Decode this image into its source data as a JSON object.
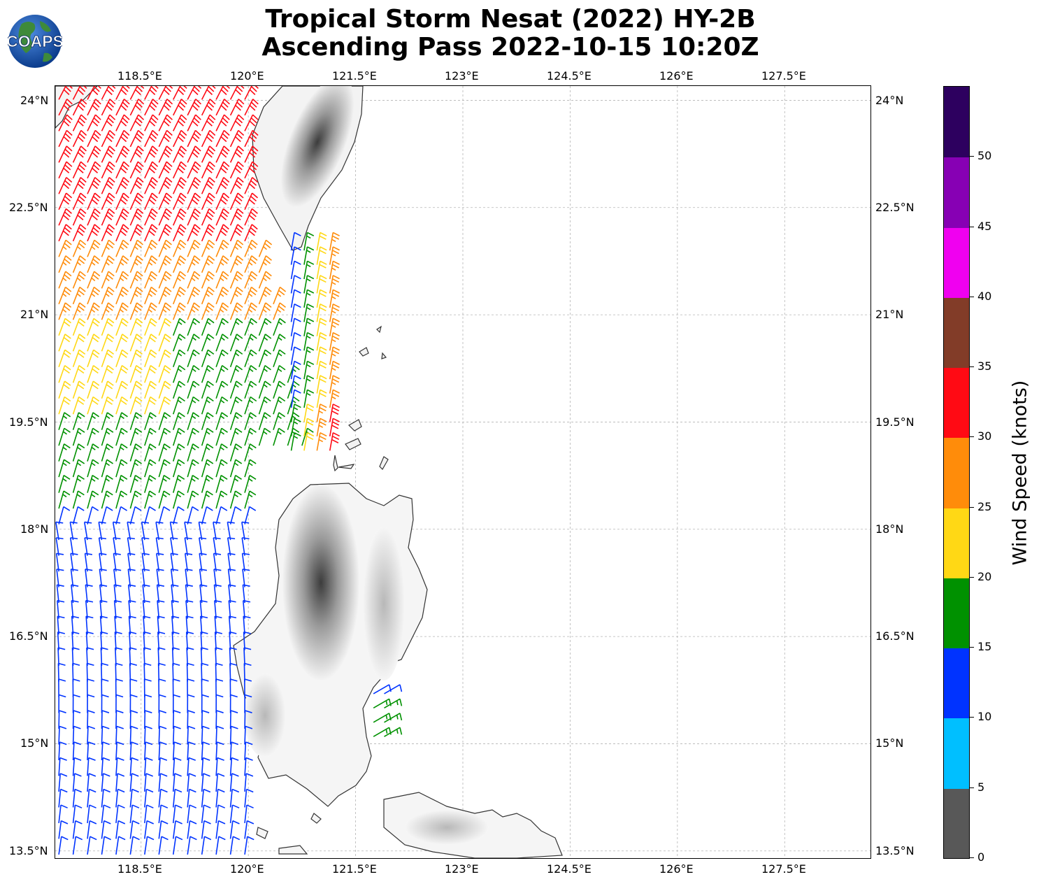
{
  "title": {
    "line1": "Tropical Storm Nesat (2022) HY-2B",
    "line2": "Ascending Pass 2022-10-15 10:20Z"
  },
  "logo": {
    "text": "COAPS",
    "icon": "globe-logo"
  },
  "map": {
    "lon_labels": [
      "118.5°E",
      "120°E",
      "121.5°E",
      "123°E",
      "124.5°E",
      "126°E",
      "127.5°E"
    ],
    "lat_labels": [
      "24°N",
      "22.5°N",
      "21°N",
      "19.5°N",
      "18°N",
      "16.5°N",
      "15°N",
      "13.5°N"
    ],
    "lon_range": [
      117.3,
      128.7
    ],
    "lat_range": [
      13.4,
      24.2
    ],
    "gridlines": true
  },
  "colorbar": {
    "title": "Wind Speed (knots)",
    "tick_labels": [
      "0",
      "5",
      "10",
      "15",
      "20",
      "25",
      "30",
      "35",
      "40",
      "45",
      "50"
    ],
    "bins": [
      {
        "min": 0,
        "max": 5,
        "color": "#585858"
      },
      {
        "min": 5,
        "max": 10,
        "color": "#00bfff"
      },
      {
        "min": 10,
        "max": 15,
        "color": "#0033ff"
      },
      {
        "min": 15,
        "max": 20,
        "color": "#009100"
      },
      {
        "min": 20,
        "max": 25,
        "color": "#ffd815"
      },
      {
        "min": 25,
        "max": 30,
        "color": "#ff8c0a"
      },
      {
        "min": 30,
        "max": 35,
        "color": "#ff0a14"
      },
      {
        "min": 35,
        "max": 40,
        "color": "#823c28"
      },
      {
        "min": 40,
        "max": 45,
        "color": "#f000f0"
      },
      {
        "min": 45,
        "max": 50,
        "color": "#8700b4"
      },
      {
        "min": 50,
        "max": 55,
        "color": "#2d005f"
      }
    ]
  },
  "wind_field": {
    "speed_zones_by_lat_north_swath": [
      {
        "lat_min": 22.0,
        "lat_max": 24.2,
        "speed": 32
      },
      {
        "lat_min": 20.8,
        "lat_max": 22.0,
        "speed": 27
      },
      {
        "lat_min": 19.6,
        "lat_max": 20.8,
        "speed": 22
      },
      {
        "lat_min": 18.1,
        "lat_max": 19.6,
        "speed": 17
      },
      {
        "lat_min": 13.4,
        "lat_max": 18.1,
        "speed": 12
      }
    ],
    "east_swath_speeds": [
      13,
      17,
      22,
      28,
      33
    ]
  }
}
